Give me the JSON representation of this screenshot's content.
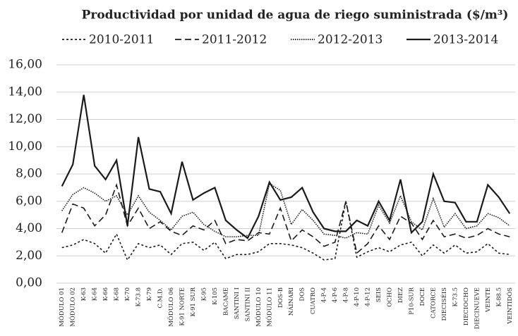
{
  "chart_data": {
    "type": "line",
    "title": "Productividad por unidad de agua de riego suministrada ($/m³)",
    "categories": [
      "MÓDULO 01",
      "MÓDULO 02",
      "K-63",
      "K-64",
      "K-66",
      "K-68",
      "K-70",
      "K-73.8",
      "K-79",
      "C.M.D.",
      "MÓDULO 06",
      "K-91 NORTE",
      "K-91 SUR",
      "K-95",
      "K-105",
      "BACAME",
      "SANTINI I",
      "SANTINI II",
      "MÓDULO 10",
      "MÓDULO 11",
      "DOS-B",
      "NÁINARI",
      "DOS",
      "CUATRO",
      "4-P-4",
      "4-P-6",
      "4-P-8",
      "4-P-10",
      "4-P-12",
      "SEIS",
      "OCHO",
      "DIEZ",
      "P10-SUR",
      "DOCE",
      "CATORCE",
      "DIECISÉIS",
      "K-73.5",
      "DIECIOCHO",
      "DIECINUEVE",
      "VEINTE",
      "K-88.5",
      "VEINTIDÓS"
    ],
    "series": [
      {
        "name": "2010-2011",
        "color": "#1a1a1a",
        "dash": "short-dash",
        "values": [
          2.6,
          2.8,
          3.2,
          2.9,
          2.2,
          3.6,
          1.7,
          2.9,
          2.6,
          2.8,
          2.1,
          2.9,
          3.0,
          2.4,
          3.0,
          1.8,
          2.1,
          2.1,
          2.3,
          2.9,
          2.9,
          2.8,
          2.6,
          2.2,
          1.7,
          1.8,
          6.0,
          1.9,
          2.3,
          2.6,
          2.3,
          2.8,
          3.0,
          2.0,
          2.8,
          2.2,
          2.8,
          2.2,
          2.3,
          2.9,
          2.2,
          2.1
        ]
      },
      {
        "name": "2011-2012",
        "color": "#1a1a1a",
        "dash": "long-dash",
        "values": [
          3.7,
          5.8,
          5.5,
          4.2,
          5.0,
          7.2,
          4.2,
          5.5,
          4.0,
          4.5,
          3.8,
          3.5,
          4.2,
          3.9,
          4.6,
          2.9,
          3.2,
          3.1,
          3.7,
          3.6,
          5.5,
          3.1,
          3.9,
          3.4,
          2.7,
          3.0,
          6.0,
          2.2,
          2.9,
          4.2,
          3.2,
          4.9,
          4.4,
          3.2,
          4.6,
          3.4,
          3.6,
          3.3,
          3.5,
          4.0,
          3.6,
          3.4
        ]
      },
      {
        "name": "2012-2013",
        "color": "#1a1a1a",
        "dash": "dotted",
        "values": [
          5.3,
          6.5,
          7.0,
          6.6,
          6.0,
          6.4,
          5.0,
          6.4,
          5.2,
          4.6,
          3.9,
          4.9,
          5.2,
          4.3,
          3.8,
          3.4,
          3.4,
          3.5,
          3.5,
          7.3,
          6.8,
          4.3,
          5.4,
          4.6,
          3.6,
          3.5,
          3.3,
          3.7,
          3.6,
          5.7,
          4.4,
          6.4,
          4.5,
          3.9,
          6.2,
          4.1,
          5.1,
          4.0,
          4.2,
          5.1,
          4.8,
          4.2
        ]
      },
      {
        "name": "2013-2014",
        "color": "#1a1a1a",
        "dash": "solid",
        "values": [
          7.1,
          8.7,
          13.8,
          8.6,
          7.6,
          9.0,
          4.2,
          10.7,
          6.9,
          6.7,
          5.1,
          8.9,
          6.1,
          6.6,
          7.0,
          4.6,
          3.9,
          3.3,
          4.9,
          7.4,
          6.1,
          6.3,
          7.0,
          5.2,
          4.0,
          3.8,
          3.8,
          4.6,
          4.2,
          6.0,
          4.6,
          7.6,
          3.7,
          4.5,
          8.0,
          6.0,
          5.9,
          4.5,
          4.5,
          7.2,
          6.3,
          5.1
        ]
      }
    ],
    "ylim": [
      0,
      16
    ],
    "yticks": [
      {
        "value": 0,
        "label": "0,00"
      },
      {
        "value": 2,
        "label": "2,00"
      },
      {
        "value": 4,
        "label": "4,00"
      },
      {
        "value": 6,
        "label": "6,00"
      },
      {
        "value": 8,
        "label": "8,00"
      },
      {
        "value": 10,
        "label": "10,00"
      },
      {
        "value": 12,
        "label": "12,00"
      },
      {
        "value": 14,
        "label": "14,00"
      },
      {
        "value": 16,
        "label": "16,00"
      }
    ],
    "grid": true
  }
}
